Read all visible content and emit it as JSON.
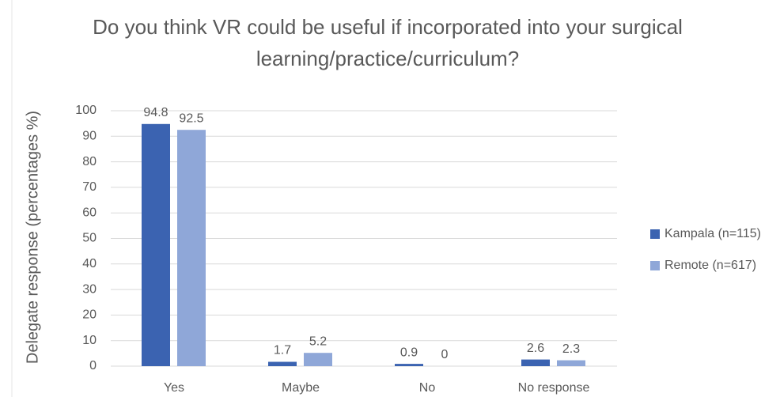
{
  "chart_data": {
    "type": "bar",
    "title": "Do you think VR could be useful if incorporated into your surgical learning/practice/curriculum?",
    "y_label": "Delegate response  (percentages %)",
    "categories": [
      "Yes",
      "Maybe",
      "No",
      "No response"
    ],
    "series": [
      {
        "name": "Kampala (n=115)",
        "color": "#3b63b1",
        "values": [
          94.8,
          1.7,
          0.9,
          2.6
        ]
      },
      {
        "name": "Remote (n=617)",
        "color": "#8fa7d8",
        "values": [
          92.5,
          5.2,
          0,
          2.3
        ]
      }
    ],
    "ylim": [
      0,
      100
    ],
    "yticks": [
      0,
      10,
      20,
      30,
      40,
      50,
      60,
      70,
      80,
      90,
      100
    ],
    "grid": true,
    "legend": "right"
  }
}
